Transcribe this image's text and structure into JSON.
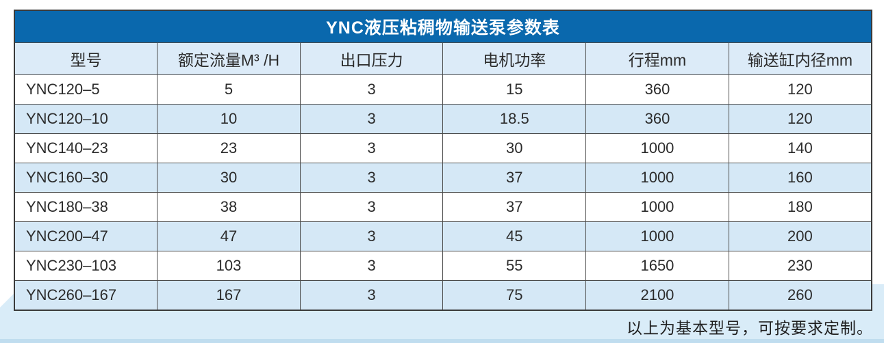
{
  "page": {
    "background": "#ffffff",
    "band_color": "#d9ecf8",
    "strip_color": "#c0ddef"
  },
  "table": {
    "title": "YNC液压粘稠物输送泵参数表",
    "title_bg": "#0a68ad",
    "title_color": "#ffffff",
    "header_bg": "#dcebf8",
    "alt_row_bg": "#d5e8f6",
    "columns": [
      "型号",
      "额定流量M³ /H",
      "出口压力",
      "电机功率",
      "行程mm",
      "输送缸内径mm"
    ],
    "rows": [
      [
        "YNC120–5",
        "5",
        "3",
        "15",
        "360",
        "120"
      ],
      [
        "YNC120–10",
        "10",
        "3",
        "18.5",
        "360",
        "120"
      ],
      [
        "YNC140–23",
        "23",
        "3",
        "30",
        "1000",
        "140"
      ],
      [
        "YNC160–30",
        "30",
        "3",
        "37",
        "1000",
        "160"
      ],
      [
        "YNC180–38",
        "38",
        "3",
        "37",
        "1000",
        "180"
      ],
      [
        "YNC200–47",
        "47",
        "3",
        "45",
        "1000",
        "200"
      ],
      [
        "YNC230–103",
        "103",
        "3",
        "55",
        "1650",
        "230"
      ],
      [
        "YNC260–167",
        "167",
        "3",
        "75",
        "2100",
        "260"
      ]
    ]
  },
  "footer": {
    "note": "以上为基本型号，可按要求定制。"
  }
}
